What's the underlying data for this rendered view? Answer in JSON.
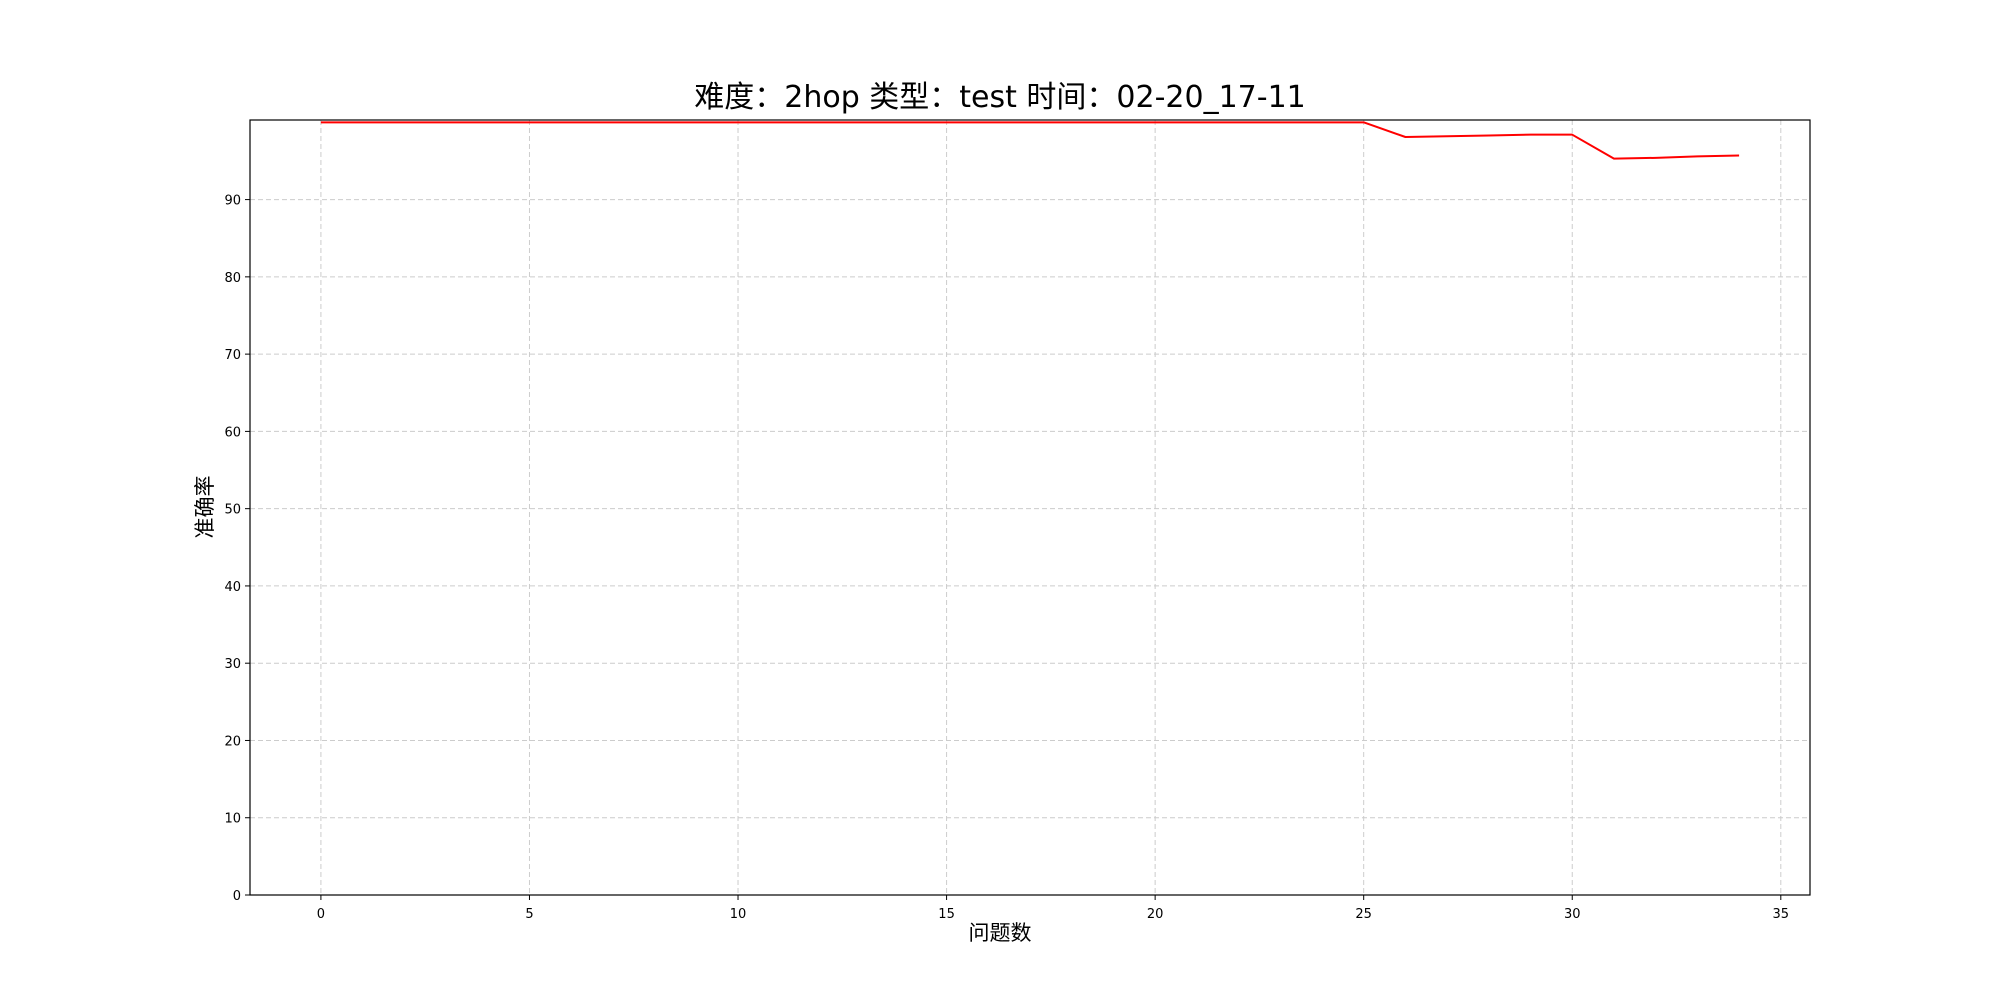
{
  "chart_data": {
    "type": "line",
    "title": "难度：2hop 类型：test 时间：02-20_17-11",
    "xlabel": "问题数",
    "ylabel": "准确率",
    "xlim": [
      -1.7,
      35.7
    ],
    "ylim": [
      0,
      100.3
    ],
    "xticks": [
      0,
      5,
      10,
      15,
      20,
      25,
      30,
      35
    ],
    "yticks": [
      0,
      10,
      20,
      30,
      40,
      50,
      60,
      70,
      80,
      90
    ],
    "grid": true,
    "series": [
      {
        "color": "#ff0000",
        "x": [
          0,
          1,
          2,
          3,
          4,
          5,
          6,
          7,
          8,
          9,
          10,
          11,
          12,
          13,
          14,
          15,
          16,
          17,
          18,
          19,
          20,
          21,
          22,
          23,
          24,
          25,
          26,
          27,
          28,
          29,
          30,
          31,
          32,
          33,
          34
        ],
        "y": [
          100,
          100,
          100,
          100,
          100,
          100,
          100,
          100,
          100,
          100,
          100,
          100,
          100,
          100,
          100,
          100,
          100,
          100,
          100,
          100,
          100,
          100,
          100,
          100,
          100,
          100,
          98.1,
          98.2,
          98.3,
          98.4,
          98.4,
          95.3,
          95.4,
          95.6,
          95.7
        ]
      }
    ]
  }
}
